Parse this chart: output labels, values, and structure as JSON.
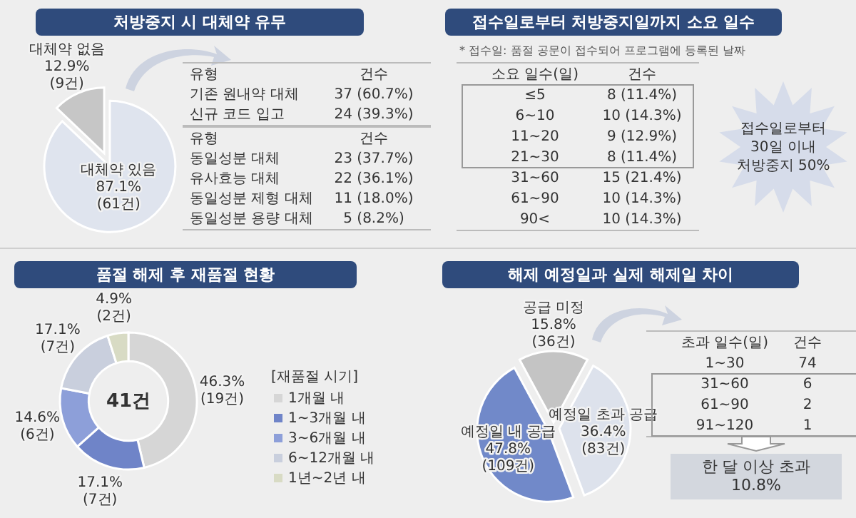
{
  "chart_data": [
    {
      "type": "pie",
      "title": "처방중지 시 대체약 유무",
      "categories": [
        "대체약 없음",
        "대체약 있음"
      ],
      "values": [
        12.9,
        87.1
      ],
      "colors": [
        "#c6c6c6",
        "#dfe4ee"
      ],
      "value_labels": [
        "12.9%\n(9건)",
        "87.1%\n(61건)"
      ]
    },
    {
      "type": "other",
      "xlabel": "유형",
      "ylabel": "건수",
      "categories": [
        "기존 원내약 대체",
        "신규 코드 입고"
      ],
      "value_labels": [
        "37 (60.7%)",
        "24 (39.3%)"
      ]
    },
    {
      "type": "other",
      "xlabel": "유형",
      "ylabel": "건수",
      "categories": [
        "동일성분 대체",
        "유사효능 대체",
        "동일성분 제형 대체",
        "동일성분 용량 대체"
      ],
      "value_labels": [
        "23 (37.7%)",
        "22 (36.1%)",
        "11 (18.0%)",
        "5 (8.2%)"
      ]
    },
    {
      "type": "other",
      "title": "접수일로부터 처방중지일까지 소요 일수",
      "subtitle": "* 접수일: 품절 공문이 접수되어 프로그램에 등록된 날짜",
      "xlabel": "소요 일수(일)",
      "ylabel": "건수",
      "categories": [
        "≤5",
        "6~10",
        "11~20",
        "21~30",
        "31~60",
        "61~90",
        "90<"
      ],
      "value_labels": [
        "8 (11.4%)",
        "10 (14.3%)",
        "9 (12.9%)",
        "8 (11.4%)",
        "15 (21.4%)",
        "10 (14.3%)",
        "10 (14.3%)"
      ],
      "annotations": [
        "접수일로부터\n30일 이내\n처방중지 50%"
      ]
    },
    {
      "type": "donut",
      "title": "품절 해제 후 재품절 현황",
      "categories": [
        "1개월 내",
        "1~3개월 내",
        "3~6개월 내",
        "6~12개월 내",
        "1년~2년 내"
      ],
      "values": [
        46.3,
        17.1,
        14.6,
        17.1,
        4.9
      ],
      "colors": [
        "#d6d6d6",
        "#6f84c8",
        "#8d9fd9",
        "#c9cfdd",
        "#d8dbc4"
      ],
      "value_labels": [
        "46.3%\n(19건)",
        "17.1%\n(7건)",
        "14.6%\n(6건)",
        "17.1%\n(7건)",
        "4.9%\n(2건)"
      ],
      "legend_title": "[재품절 시기]",
      "legend": "right",
      "annotations": [
        "41건"
      ]
    },
    {
      "type": "pie",
      "title": "해제 예정일과 실제 해제일 차이",
      "categories": [
        "공급 미정",
        "예정일 초과 공급",
        "예정일 내 공급"
      ],
      "values": [
        15.8,
        36.4,
        47.8
      ],
      "colors": [
        "#c4c4c4",
        "#dde2ec",
        "#7189c9"
      ],
      "value_labels": [
        "15.8%\n(36건)",
        "36.4%\n(83건)",
        "47.8%\n(109건)"
      ]
    },
    {
      "type": "other",
      "xlabel": "초과 일수(일)",
      "ylabel": "건수",
      "categories": [
        "1~30",
        "31~60",
        "61~90",
        "91~120"
      ],
      "value_labels": [
        "74",
        "6",
        "2",
        "1"
      ],
      "annotations": [
        "한 달 이상 초과\n10.8%"
      ]
    }
  ]
}
